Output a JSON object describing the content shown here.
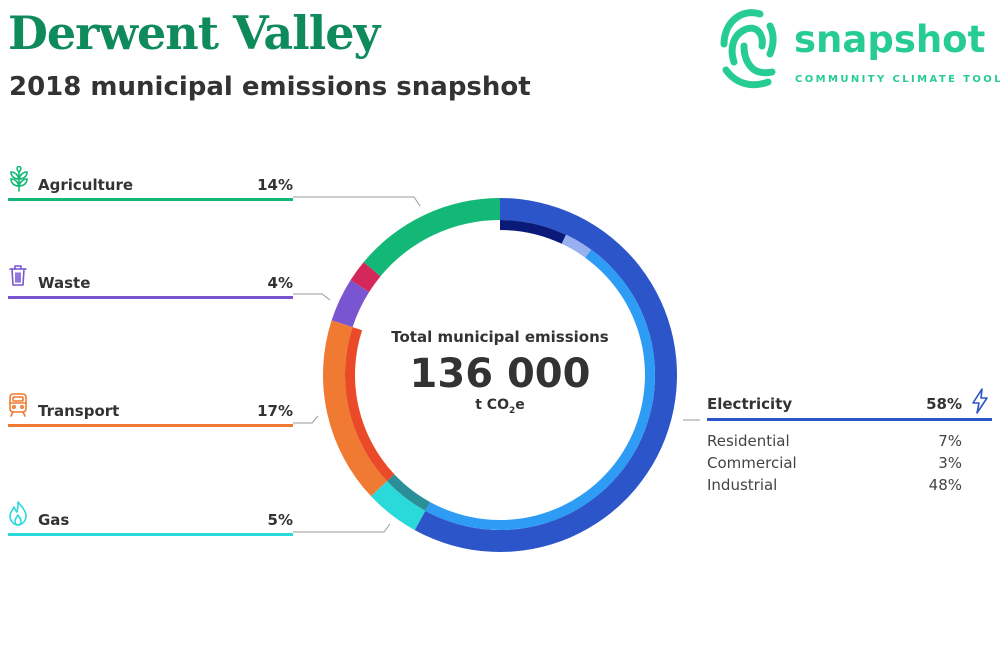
{
  "header": {
    "title": "Derwent Valley",
    "subtitle": "2018 municipal emissions snapshot"
  },
  "logo": {
    "word": "snapshot",
    "tagline": "COMMUNITY CLIMATE TOOL",
    "icon": "fingerprint-icon",
    "color": "#27cc92"
  },
  "center": {
    "label": "Total municipal emissions",
    "value": "136 000",
    "unit_prefix": "t CO",
    "unit_sub": "2",
    "unit_suffix": "e"
  },
  "chart_data": {
    "type": "donut",
    "total": "136 000",
    "unit": "t CO2e",
    "sectors": [
      {
        "name": "Electricity",
        "percent": 58,
        "label": "58%",
        "color": "#2b55c8",
        "icon": "lightning-bolt-icon",
        "subsectors": [
          {
            "name": "Residential",
            "percent": 7,
            "label": "7%",
            "color": "#0a1a78"
          },
          {
            "name": "Commercial",
            "percent": 3,
            "label": "3%",
            "color": "#98b0f0"
          },
          {
            "name": "Industrial",
            "percent": 48,
            "label": "48%",
            "color": "#2e9bf5"
          }
        ]
      },
      {
        "name": "Gas",
        "percent": 5,
        "label": "5%",
        "color": "#2ad9d9",
        "inner_color": "#2a8f99",
        "icon": "flame-icon"
      },
      {
        "name": "Transport",
        "percent": 17,
        "label": "17%",
        "color": "#f07a32",
        "inner_color": "#ea4a28",
        "icon": "train-icon"
      },
      {
        "name": "Waste",
        "percent": 4,
        "label": "4%",
        "color": "#7a55d2",
        "icon": "trash-bin-icon"
      },
      {
        "name": "Agriculture",
        "percent": 14,
        "label": "14%",
        "color": "#13b877",
        "icon": "leaf-icon"
      }
    ],
    "other_slice_color": "#d4285a"
  }
}
